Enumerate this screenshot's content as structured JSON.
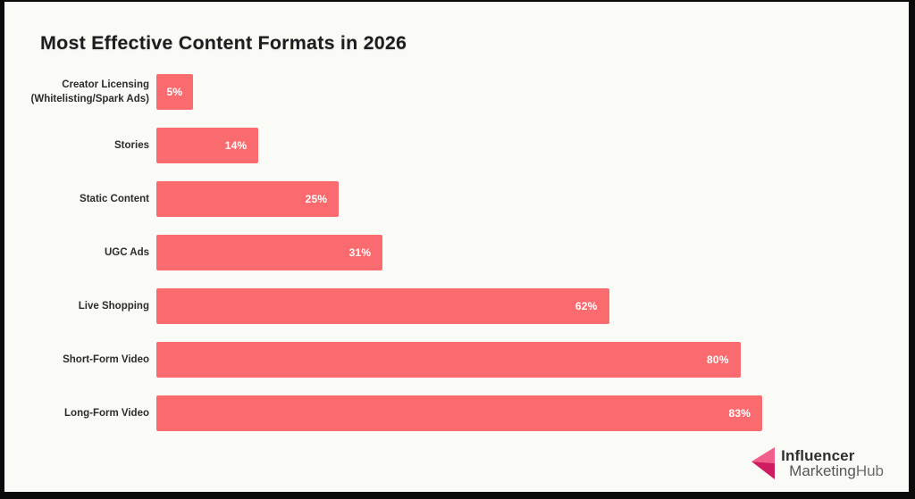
{
  "frame": {
    "border_color": "#0b0b0b",
    "background_color": "#fafaf6"
  },
  "chart_data": {
    "type": "bar",
    "orientation": "horizontal",
    "title": "Most Effective Content Formats in 2026",
    "categories": [
      "Creator Licensing (Whitelisting/Spark Ads)",
      "Stories",
      "Static Content",
      "UGC Ads",
      "Live Shopping",
      "Short-Form Video",
      "Long-Form Video"
    ],
    "values": [
      5,
      14,
      25,
      31,
      62,
      80,
      83
    ],
    "value_labels": [
      "5%",
      "14%",
      "25%",
      "31%",
      "62%",
      "80%",
      "83%"
    ],
    "xlim": [
      0,
      100
    ],
    "grid": false,
    "axis_lines": false,
    "legend": false,
    "bar_color": "#f96b6e",
    "value_label_color": "#ffffff",
    "category_label_color": "#2c2c2e"
  },
  "logo": {
    "line1": "Influencer",
    "line2_part1": "Marketing",
    "line2_part2": "Hub",
    "icon": "influencer-marketinghub-arrow-logo",
    "icon_color_top": "#f0608a",
    "icon_color_bottom": "#cf1c5e"
  }
}
